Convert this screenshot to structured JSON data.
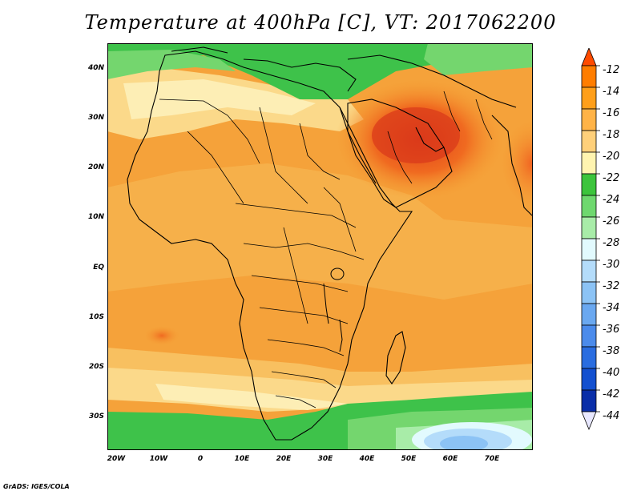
{
  "title": "Temperature at 400hPa [C], VT: 2017062200",
  "credit": "GrADS: IGES/COLA",
  "map": {
    "region": "Africa and Middle East",
    "lon_range": [
      -22,
      80
    ],
    "lat_range": [
      -37,
      45
    ]
  },
  "lat_labels": [
    "40N",
    "30N",
    "20N",
    "10N",
    "EQ",
    "10S",
    "20S",
    "30S"
  ],
  "lon_labels": [
    "20W",
    "10W",
    "0",
    "10E",
    "20E",
    "30E",
    "40E",
    "50E",
    "60E",
    "70E"
  ],
  "colorbar": {
    "labels": [
      "-12",
      "-14",
      "-16",
      "-18",
      "-20",
      "-22",
      "-24",
      "-26",
      "-28",
      "-30",
      "-32",
      "-34",
      "-36",
      "-38",
      "-40",
      "-42",
      "-44"
    ],
    "colors": [
      "#ff4b00",
      "#ff7d00",
      "#ff9f1a",
      "#ffb347",
      "#ffd07a",
      "#fff4b0",
      "#3cc43c",
      "#6ed86e",
      "#a8eca8",
      "#e2fafe",
      "#b4dcfa",
      "#8cc3f5",
      "#6aa8f0",
      "#4b8beb",
      "#2a6de0",
      "#1350d0",
      "#0a2ea8",
      "#0a1a70"
    ]
  }
}
